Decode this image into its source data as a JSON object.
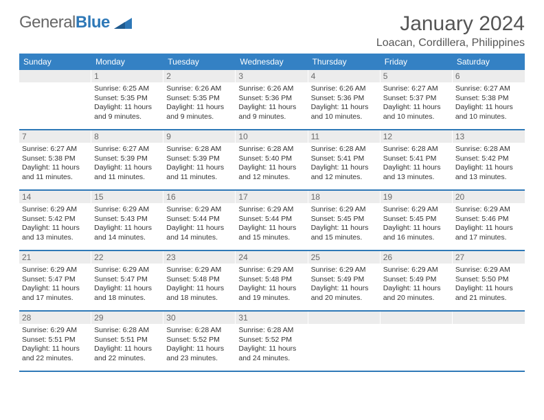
{
  "brand": {
    "name_part1": "General",
    "name_part2": "Blue",
    "text_color": "#676767",
    "accent_color": "#2e78b7"
  },
  "title": {
    "month": "January 2024",
    "location": "Loacan, Cordillera, Philippines",
    "month_fontsize": 30,
    "location_fontsize": 16,
    "text_color": "#555555"
  },
  "style": {
    "header_bg": "#3481c4",
    "header_fg": "#ffffff",
    "daynum_bg": "#ececec",
    "daynum_fg": "#6a6a6a",
    "week_border": "#2e78b7",
    "body_text": "#333333",
    "page_bg": "#ffffff",
    "header_fontsize": 12,
    "daynum_fontsize": 12,
    "body_fontsize": 10.5
  },
  "day_names": [
    "Sunday",
    "Monday",
    "Tuesday",
    "Wednesday",
    "Thursday",
    "Friday",
    "Saturday"
  ],
  "weeks": [
    [
      {
        "day": "",
        "sunrise": "",
        "sunset": "",
        "daylight": ""
      },
      {
        "day": "1",
        "sunrise": "Sunrise: 6:25 AM",
        "sunset": "Sunset: 5:35 PM",
        "daylight": "Daylight: 11 hours and 9 minutes."
      },
      {
        "day": "2",
        "sunrise": "Sunrise: 6:26 AM",
        "sunset": "Sunset: 5:35 PM",
        "daylight": "Daylight: 11 hours and 9 minutes."
      },
      {
        "day": "3",
        "sunrise": "Sunrise: 6:26 AM",
        "sunset": "Sunset: 5:36 PM",
        "daylight": "Daylight: 11 hours and 9 minutes."
      },
      {
        "day": "4",
        "sunrise": "Sunrise: 6:26 AM",
        "sunset": "Sunset: 5:36 PM",
        "daylight": "Daylight: 11 hours and 10 minutes."
      },
      {
        "day": "5",
        "sunrise": "Sunrise: 6:27 AM",
        "sunset": "Sunset: 5:37 PM",
        "daylight": "Daylight: 11 hours and 10 minutes."
      },
      {
        "day": "6",
        "sunrise": "Sunrise: 6:27 AM",
        "sunset": "Sunset: 5:38 PM",
        "daylight": "Daylight: 11 hours and 10 minutes."
      }
    ],
    [
      {
        "day": "7",
        "sunrise": "Sunrise: 6:27 AM",
        "sunset": "Sunset: 5:38 PM",
        "daylight": "Daylight: 11 hours and 11 minutes."
      },
      {
        "day": "8",
        "sunrise": "Sunrise: 6:27 AM",
        "sunset": "Sunset: 5:39 PM",
        "daylight": "Daylight: 11 hours and 11 minutes."
      },
      {
        "day": "9",
        "sunrise": "Sunrise: 6:28 AM",
        "sunset": "Sunset: 5:39 PM",
        "daylight": "Daylight: 11 hours and 11 minutes."
      },
      {
        "day": "10",
        "sunrise": "Sunrise: 6:28 AM",
        "sunset": "Sunset: 5:40 PM",
        "daylight": "Daylight: 11 hours and 12 minutes."
      },
      {
        "day": "11",
        "sunrise": "Sunrise: 6:28 AM",
        "sunset": "Sunset: 5:41 PM",
        "daylight": "Daylight: 11 hours and 12 minutes."
      },
      {
        "day": "12",
        "sunrise": "Sunrise: 6:28 AM",
        "sunset": "Sunset: 5:41 PM",
        "daylight": "Daylight: 11 hours and 13 minutes."
      },
      {
        "day": "13",
        "sunrise": "Sunrise: 6:28 AM",
        "sunset": "Sunset: 5:42 PM",
        "daylight": "Daylight: 11 hours and 13 minutes."
      }
    ],
    [
      {
        "day": "14",
        "sunrise": "Sunrise: 6:29 AM",
        "sunset": "Sunset: 5:42 PM",
        "daylight": "Daylight: 11 hours and 13 minutes."
      },
      {
        "day": "15",
        "sunrise": "Sunrise: 6:29 AM",
        "sunset": "Sunset: 5:43 PM",
        "daylight": "Daylight: 11 hours and 14 minutes."
      },
      {
        "day": "16",
        "sunrise": "Sunrise: 6:29 AM",
        "sunset": "Sunset: 5:44 PM",
        "daylight": "Daylight: 11 hours and 14 minutes."
      },
      {
        "day": "17",
        "sunrise": "Sunrise: 6:29 AM",
        "sunset": "Sunset: 5:44 PM",
        "daylight": "Daylight: 11 hours and 15 minutes."
      },
      {
        "day": "18",
        "sunrise": "Sunrise: 6:29 AM",
        "sunset": "Sunset: 5:45 PM",
        "daylight": "Daylight: 11 hours and 15 minutes."
      },
      {
        "day": "19",
        "sunrise": "Sunrise: 6:29 AM",
        "sunset": "Sunset: 5:45 PM",
        "daylight": "Daylight: 11 hours and 16 minutes."
      },
      {
        "day": "20",
        "sunrise": "Sunrise: 6:29 AM",
        "sunset": "Sunset: 5:46 PM",
        "daylight": "Daylight: 11 hours and 17 minutes."
      }
    ],
    [
      {
        "day": "21",
        "sunrise": "Sunrise: 6:29 AM",
        "sunset": "Sunset: 5:47 PM",
        "daylight": "Daylight: 11 hours and 17 minutes."
      },
      {
        "day": "22",
        "sunrise": "Sunrise: 6:29 AM",
        "sunset": "Sunset: 5:47 PM",
        "daylight": "Daylight: 11 hours and 18 minutes."
      },
      {
        "day": "23",
        "sunrise": "Sunrise: 6:29 AM",
        "sunset": "Sunset: 5:48 PM",
        "daylight": "Daylight: 11 hours and 18 minutes."
      },
      {
        "day": "24",
        "sunrise": "Sunrise: 6:29 AM",
        "sunset": "Sunset: 5:48 PM",
        "daylight": "Daylight: 11 hours and 19 minutes."
      },
      {
        "day": "25",
        "sunrise": "Sunrise: 6:29 AM",
        "sunset": "Sunset: 5:49 PM",
        "daylight": "Daylight: 11 hours and 20 minutes."
      },
      {
        "day": "26",
        "sunrise": "Sunrise: 6:29 AM",
        "sunset": "Sunset: 5:49 PM",
        "daylight": "Daylight: 11 hours and 20 minutes."
      },
      {
        "day": "27",
        "sunrise": "Sunrise: 6:29 AM",
        "sunset": "Sunset: 5:50 PM",
        "daylight": "Daylight: 11 hours and 21 minutes."
      }
    ],
    [
      {
        "day": "28",
        "sunrise": "Sunrise: 6:29 AM",
        "sunset": "Sunset: 5:51 PM",
        "daylight": "Daylight: 11 hours and 22 minutes."
      },
      {
        "day": "29",
        "sunrise": "Sunrise: 6:28 AM",
        "sunset": "Sunset: 5:51 PM",
        "daylight": "Daylight: 11 hours and 22 minutes."
      },
      {
        "day": "30",
        "sunrise": "Sunrise: 6:28 AM",
        "sunset": "Sunset: 5:52 PM",
        "daylight": "Daylight: 11 hours and 23 minutes."
      },
      {
        "day": "31",
        "sunrise": "Sunrise: 6:28 AM",
        "sunset": "Sunset: 5:52 PM",
        "daylight": "Daylight: 11 hours and 24 minutes."
      },
      {
        "day": "",
        "sunrise": "",
        "sunset": "",
        "daylight": ""
      },
      {
        "day": "",
        "sunrise": "",
        "sunset": "",
        "daylight": ""
      },
      {
        "day": "",
        "sunrise": "",
        "sunset": "",
        "daylight": ""
      }
    ]
  ]
}
